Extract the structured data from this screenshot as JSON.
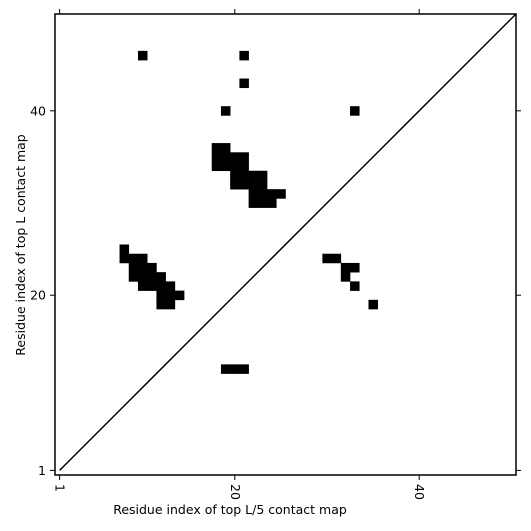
{
  "chart_data": {
    "type": "scatter",
    "xlabel": "Residue index of top L/5 contact map",
    "ylabel": "Residue index of top L contact map",
    "xlim": [
      0.5,
      50.5
    ],
    "ylim": [
      0.5,
      50.5
    ],
    "xticks": [
      1,
      20,
      40
    ],
    "yticks": [
      1,
      20,
      40
    ],
    "series": [
      {
        "color": "#000000",
        "marker": "square",
        "x": [
          10,
          21,
          21,
          19,
          33,
          18,
          19,
          18,
          19,
          20,
          21,
          18,
          19,
          20,
          21,
          20,
          21,
          22,
          23,
          20,
          21,
          22,
          23,
          22,
          23,
          24,
          25,
          22,
          23,
          24,
          8,
          8,
          9,
          10,
          9,
          10,
          11,
          9,
          10,
          11,
          12,
          10,
          11,
          12,
          13,
          12,
          13,
          14,
          12,
          13,
          30,
          31,
          32,
          33,
          32,
          33,
          35,
          19,
          20,
          21
        ],
        "values": [
          46,
          46,
          43,
          40,
          40,
          36,
          36,
          35,
          35,
          35,
          35,
          34,
          34,
          34,
          34,
          33,
          33,
          33,
          33,
          32,
          32,
          32,
          32,
          31,
          31,
          31,
          31,
          30,
          30,
          30,
          25,
          24,
          24,
          24,
          23,
          23,
          23,
          22,
          22,
          22,
          22,
          21,
          21,
          21,
          21,
          20,
          20,
          20,
          19,
          19,
          24,
          24,
          23,
          23,
          22,
          21,
          19,
          12,
          12,
          12
        ]
      },
      {
        "color": "#000000",
        "marker": "line",
        "x": [
          1,
          50.5
        ],
        "values": [
          1,
          50.5
        ]
      }
    ]
  }
}
